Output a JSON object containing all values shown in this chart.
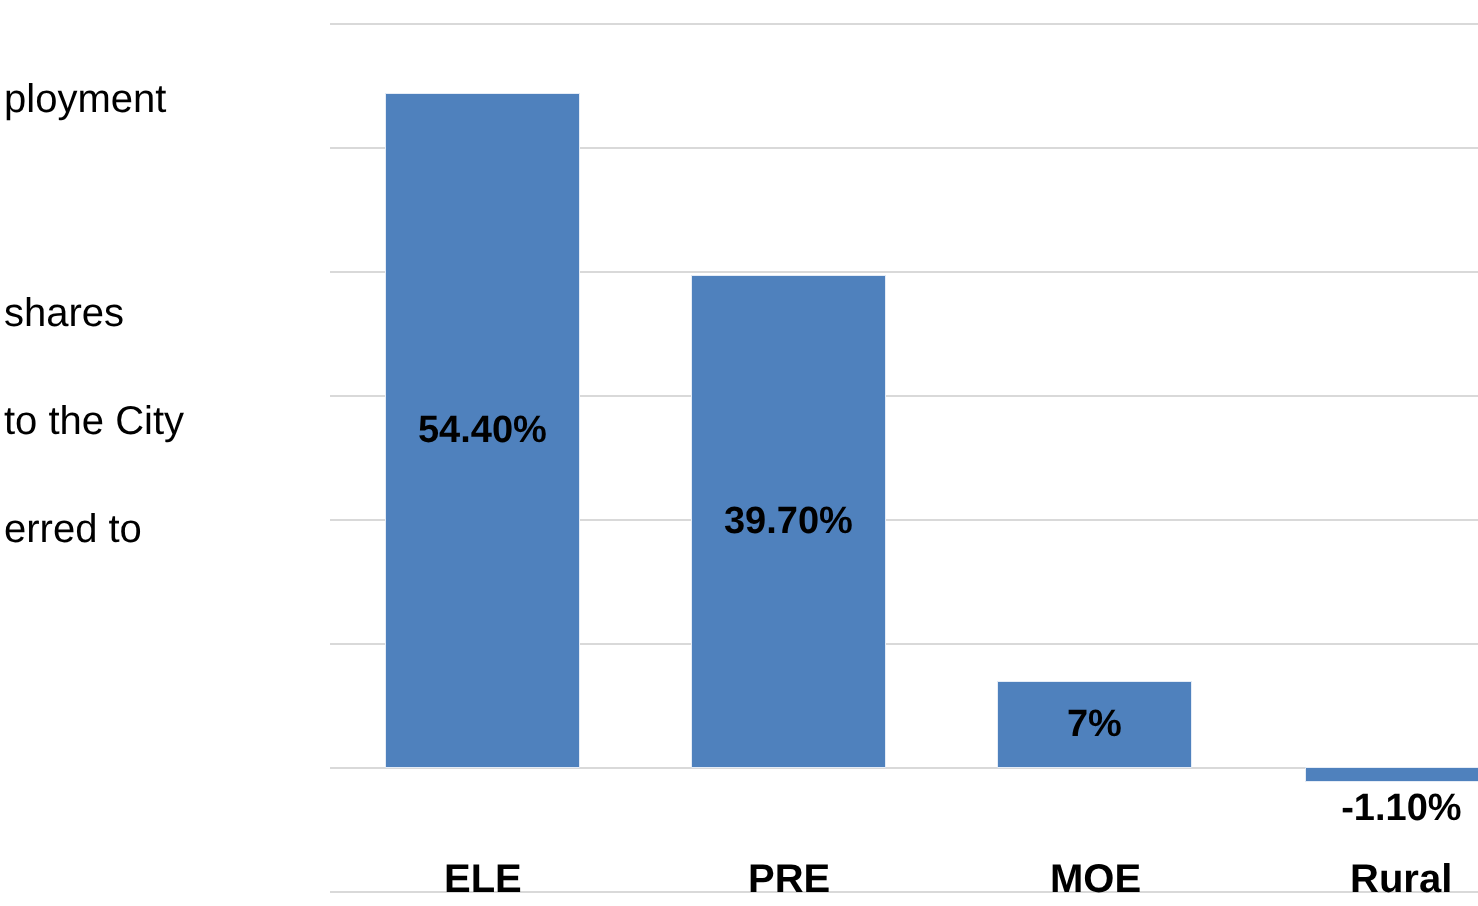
{
  "chart_data": {
    "type": "bar",
    "categories": [
      "ELE",
      "PRE",
      "MOE",
      "Rural"
    ],
    "values": [
      54.4,
      39.7,
      7,
      -1.1
    ],
    "value_labels": [
      "54.40%",
      "39.70%",
      "7%",
      "-1.10%"
    ],
    "color": "#4f81bd",
    "ylim": [
      -11.1,
      61.9
    ],
    "yticks": [
      {
        "value": -10,
        "label": null
      },
      {
        "value": 0,
        "label": null
      },
      {
        "value": 10,
        "label": null
      },
      {
        "value": 20,
        "label": null
      },
      {
        "value": 30,
        "label": null
      },
      {
        "value": 40,
        "label": null
      },
      {
        "value": 50,
        "label": null
      },
      {
        "value": 60,
        "label": null
      }
    ],
    "grid": "y",
    "legend": false,
    "tick_labels": "x",
    "annotations": [
      "ployment\n\nshares\nto the City\nerred to"
    ]
  }
}
